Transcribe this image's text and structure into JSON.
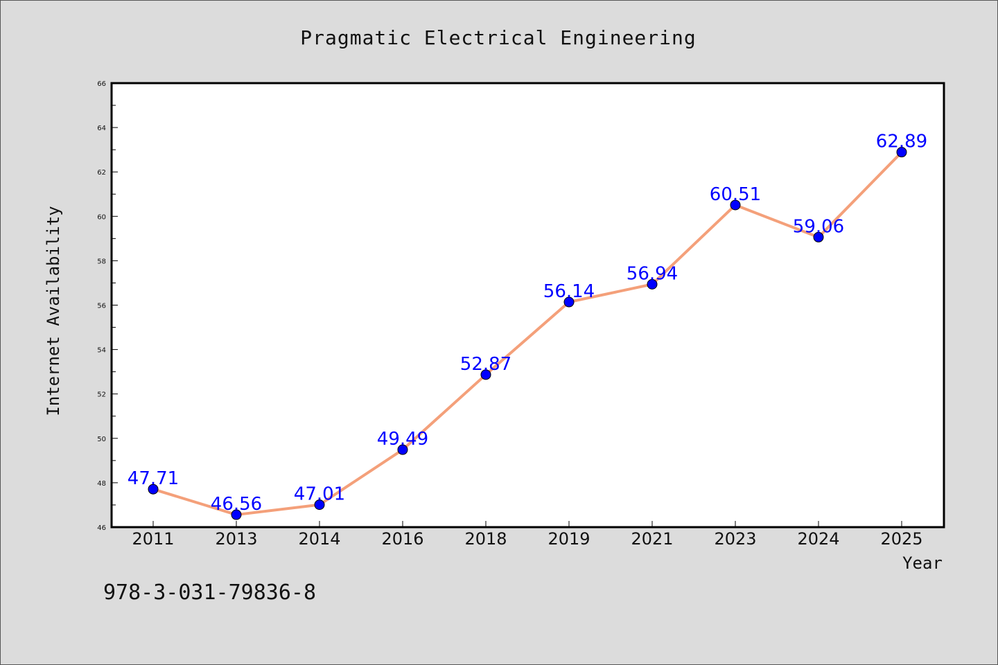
{
  "chart_data": {
    "type": "line",
    "title": "Pragmatic Electrical Engineering",
    "xlabel": "Year",
    "ylabel": "Internet Availability",
    "categories": [
      "2011",
      "2013",
      "2014",
      "2016",
      "2018",
      "2019",
      "2021",
      "2023",
      "2024",
      "2025"
    ],
    "series": [
      {
        "values": [
          47.71,
          46.56,
          47.01,
          49.49,
          52.87,
          56.14,
          56.94,
          60.51,
          59.06,
          62.89
        ],
        "labels": [
          "47.71",
          "46.56",
          "47.01",
          "49.49",
          "52.87",
          "56.14",
          "56.94",
          "60.51",
          "59.06",
          "62.89"
        ],
        "line_color": "#f4a07a",
        "marker_color": "#0000ff"
      }
    ],
    "ylim": [
      46,
      66
    ],
    "yticks": [
      "46",
      "48",
      "50",
      "52",
      "54",
      "56",
      "58",
      "60",
      "62",
      "64",
      "66"
    ],
    "grid": false,
    "legend": "none"
  },
  "footer": {
    "isbn": "978-3-031-79836-8"
  },
  "colors": {
    "background": "#dcdcdc",
    "plot_background": "#ffffff",
    "line": "#f4a07a",
    "marker": "#0000ff",
    "data_label": "#0000ff"
  }
}
